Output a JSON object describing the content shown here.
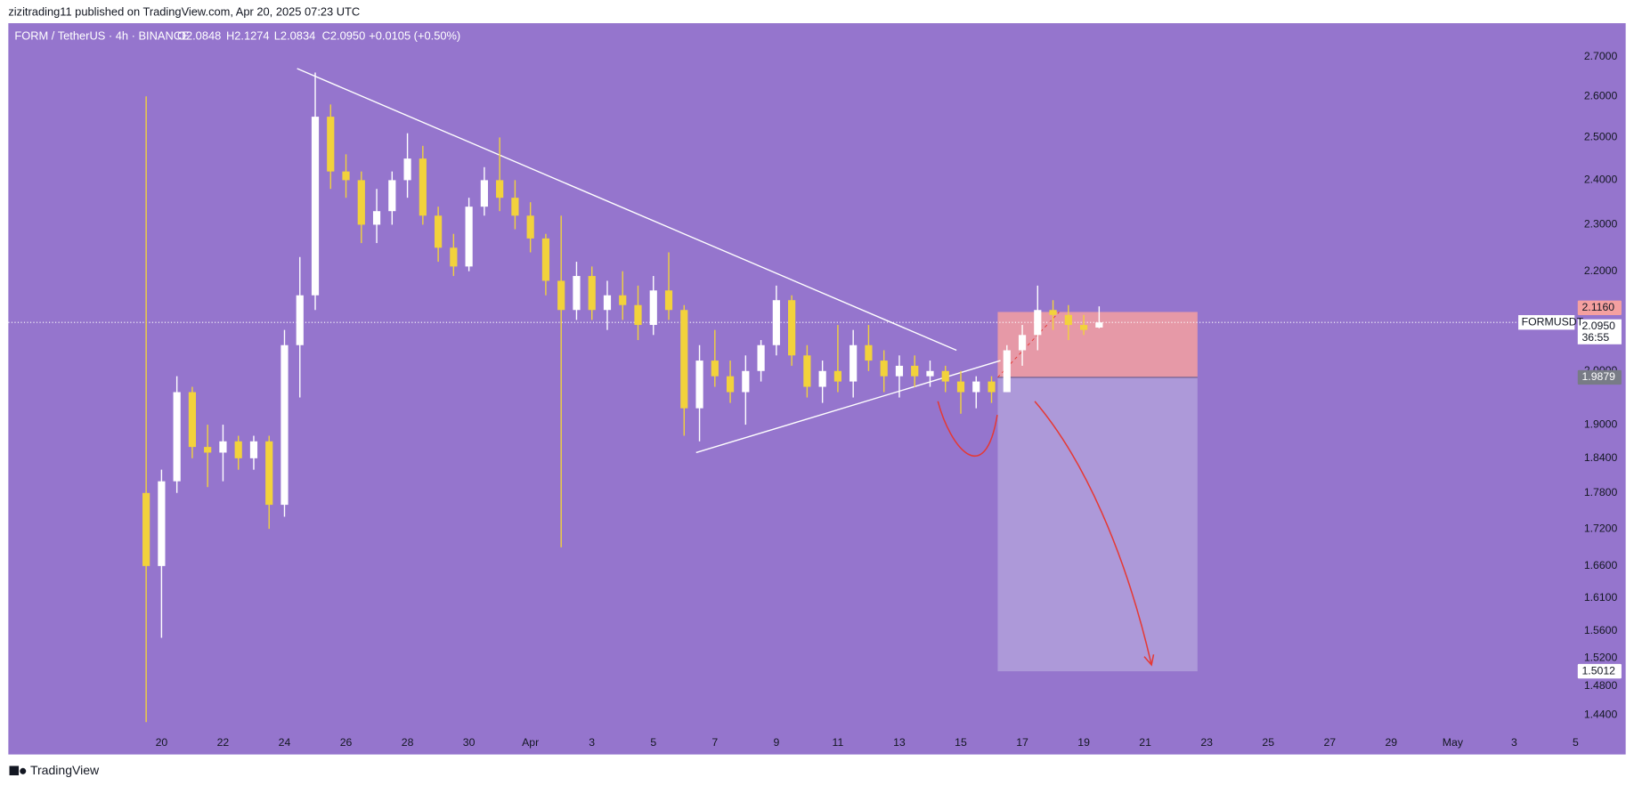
{
  "header": {
    "published": "zizitrading11 published on TradingView.com, Apr 20, 2025 07:23 UTC",
    "symbol": "FORM / TetherUS · 4h · BINANCE",
    "open": "O2.0848",
    "high": "H2.1274",
    "low": "L2.0834",
    "close": "C2.0950",
    "change": "+0.0105 (+0.50%)"
  },
  "footer": {
    "brand": "TradingView"
  },
  "chart_data": {
    "type": "candlestick",
    "log_scale": true,
    "background": "#9575cd",
    "up_color": "#ffffff",
    "down_color": "#f2d23c",
    "x": [
      19.5,
      20,
      20.5,
      21,
      21.5,
      22,
      22.5,
      23,
      23.5,
      24,
      24.5,
      25,
      25.5,
      26,
      26.5,
      27,
      27.5,
      28,
      28.5,
      29,
      29.5,
      30,
      30.5,
      31,
      31.5,
      32,
      32.5,
      33,
      33.5,
      34,
      34.5,
      35,
      35.5,
      36,
      36.5,
      37,
      37.5,
      38,
      38.5,
      39,
      39.5,
      40,
      40.5,
      41,
      41.5,
      42,
      42.5,
      43,
      43.5,
      44,
      44.5,
      45,
      45.5,
      46,
      46.5,
      47,
      47.5,
      48,
      48.5,
      49,
      49.5,
      50,
      50.5
    ],
    "open": [
      1.78,
      1.66,
      1.8,
      1.96,
      1.86,
      1.85,
      1.87,
      1.84,
      1.87,
      1.76,
      2.05,
      2.15,
      2.55,
      2.42,
      2.4,
      2.3,
      2.33,
      2.4,
      2.45,
      2.32,
      2.25,
      2.21,
      2.34,
      2.4,
      2.36,
      2.32,
      2.27,
      2.18,
      2.12,
      2.19,
      2.12,
      2.15,
      2.13,
      2.09,
      2.16,
      2.12,
      1.93,
      2.02,
      1.99,
      1.96,
      2.0,
      2.05,
      2.14,
      2.03,
      1.97,
      2.0,
      1.98,
      2.05,
      2.02,
      1.99,
      2.01,
      1.99,
      2.0,
      1.98,
      1.96,
      1.98,
      1.96,
      2.04,
      2.07,
      2.12,
      2.11,
      2.09,
      2.0848
    ],
    "high": [
      2.6,
      1.82,
      1.99,
      1.97,
      1.9,
      1.9,
      1.88,
      1.88,
      1.88,
      2.08,
      2.23,
      2.66,
      2.58,
      2.46,
      2.42,
      2.38,
      2.42,
      2.51,
      2.48,
      2.34,
      2.28,
      2.36,
      2.43,
      2.5,
      2.4,
      2.35,
      2.28,
      2.32,
      2.22,
      2.21,
      2.18,
      2.2,
      2.17,
      2.19,
      2.24,
      2.13,
      2.05,
      2.08,
      2.02,
      2.03,
      2.06,
      2.17,
      2.15,
      2.05,
      2.02,
      2.09,
      2.08,
      2.09,
      2.04,
      2.03,
      2.03,
      2.02,
      2.01,
      2.0,
      1.99,
      1.99,
      2.05,
      2.09,
      2.17,
      2.14,
      2.13,
      2.11,
      2.1274
    ],
    "low": [
      1.43,
      1.55,
      1.78,
      1.84,
      1.79,
      1.8,
      1.82,
      1.82,
      1.72,
      1.74,
      1.95,
      2.12,
      2.38,
      2.36,
      2.26,
      2.26,
      2.3,
      2.36,
      2.3,
      2.22,
      2.19,
      2.2,
      2.32,
      2.33,
      2.29,
      2.24,
      2.15,
      1.69,
      2.1,
      2.1,
      2.08,
      2.1,
      2.06,
      2.07,
      2.1,
      1.88,
      1.87,
      1.97,
      1.94,
      1.9,
      1.98,
      2.03,
      2.01,
      1.95,
      1.94,
      1.96,
      1.95,
      2.0,
      1.96,
      1.95,
      1.97,
      1.97,
      1.96,
      1.92,
      1.93,
      1.94,
      1.96,
      2.01,
      2.04,
      2.08,
      2.06,
      2.07,
      2.0834
    ],
    "close": [
      1.66,
      1.8,
      1.96,
      1.86,
      1.85,
      1.87,
      1.84,
      1.87,
      1.76,
      2.05,
      2.15,
      2.55,
      2.42,
      2.4,
      2.3,
      2.33,
      2.4,
      2.45,
      2.32,
      2.25,
      2.21,
      2.34,
      2.4,
      2.36,
      2.32,
      2.27,
      2.18,
      2.12,
      2.19,
      2.12,
      2.15,
      2.13,
      2.09,
      2.16,
      2.12,
      1.93,
      2.02,
      1.99,
      1.96,
      2.0,
      2.05,
      2.14,
      2.03,
      1.97,
      2.0,
      1.98,
      2.05,
      2.02,
      1.99,
      2.01,
      1.99,
      2.0,
      1.98,
      1.96,
      1.98,
      1.96,
      2.04,
      2.07,
      2.12,
      2.11,
      2.09,
      2.08,
      2.095
    ],
    "xlim": [
      15,
      66
    ],
    "xticks": [
      {
        "value": 20,
        "label": "20"
      },
      {
        "value": 22,
        "label": "22"
      },
      {
        "value": 24,
        "label": "24"
      },
      {
        "value": 26,
        "label": "26"
      },
      {
        "value": 28,
        "label": "28"
      },
      {
        "value": 30,
        "label": "30"
      },
      {
        "value": 32,
        "label": "Apr"
      },
      {
        "value": 34,
        "label": "3"
      },
      {
        "value": 36,
        "label": "5"
      },
      {
        "value": 38,
        "label": "7"
      },
      {
        "value": 40,
        "label": "9"
      },
      {
        "value": 42,
        "label": "11"
      },
      {
        "value": 44,
        "label": "13"
      },
      {
        "value": 46,
        "label": "15"
      },
      {
        "value": 48,
        "label": "17"
      },
      {
        "value": 50,
        "label": "19"
      },
      {
        "value": 52,
        "label": "21"
      },
      {
        "value": 54,
        "label": "23"
      },
      {
        "value": 56,
        "label": "25"
      },
      {
        "value": 58,
        "label": "27"
      },
      {
        "value": 60,
        "label": "29"
      },
      {
        "value": 62,
        "label": "May"
      },
      {
        "value": 64,
        "label": "3"
      },
      {
        "value": 66,
        "label": "5"
      }
    ],
    "ylim": [
      1.42,
      2.78
    ],
    "yticks": [
      {
        "value": 2.7,
        "label": "2.7000"
      },
      {
        "value": 2.6,
        "label": "2.6000"
      },
      {
        "value": 2.5,
        "label": "2.5000"
      },
      {
        "value": 2.4,
        "label": "2.4000"
      },
      {
        "value": 2.3,
        "label": "2.3000"
      },
      {
        "value": 2.2,
        "label": "2.2000"
      },
      {
        "value": 2.0,
        "label": "2.0000"
      },
      {
        "value": 1.9,
        "label": "1.9000"
      },
      {
        "value": 1.84,
        "label": "1.8400"
      },
      {
        "value": 1.78,
        "label": "1.7800"
      },
      {
        "value": 1.72,
        "label": "1.7200"
      },
      {
        "value": 1.66,
        "label": "1.6600"
      },
      {
        "value": 1.61,
        "label": "1.6100"
      },
      {
        "value": 1.56,
        "label": "1.5600"
      },
      {
        "value": 1.52,
        "label": "1.5200"
      },
      {
        "value": 1.48,
        "label": "1.4800"
      },
      {
        "value": 1.44,
        "label": "1.4400"
      }
    ],
    "current_price": {
      "value": 2.095,
      "label": "2.0950",
      "symbol": "FORMUSDT",
      "countdown": "36:55"
    },
    "position": {
      "x": [
        47.2,
        53.7
      ],
      "stop": {
        "value": 2.116,
        "label": "2.1160"
      },
      "entry": 1.9879,
      "target": 1.5012,
      "stop_color": "#f5a0a0",
      "target_color": "#b6a6dc"
    },
    "trendlines": [
      {
        "x": [
          24.41,
          45.86
        ],
        "y": [
          2.67,
          2.04
        ]
      },
      {
        "x": [
          37.39,
          47.29
        ],
        "y": [
          1.85,
          2.02
        ]
      }
    ]
  }
}
